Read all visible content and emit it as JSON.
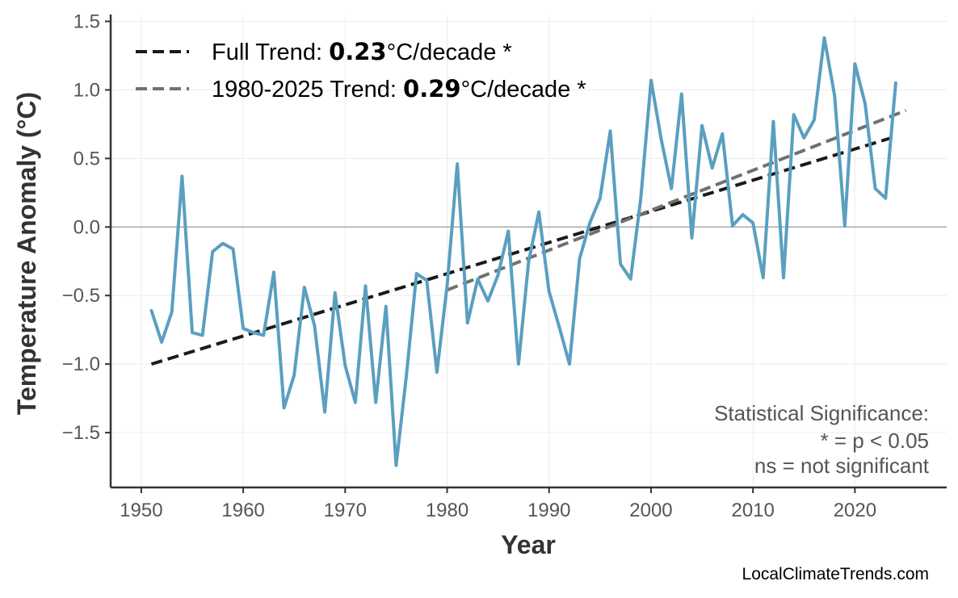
{
  "chart_data": {
    "type": "line",
    "xlabel": "Year",
    "ylabel": "Temperature Anomaly (°C)",
    "xlim": [
      1947,
      2029
    ],
    "ylim": [
      -1.9,
      1.55
    ],
    "xticks": [
      1950,
      1960,
      1970,
      1980,
      1990,
      2000,
      2010,
      2020
    ],
    "xtick_labels": [
      "1950",
      "1960",
      "1970",
      "1980",
      "1990",
      "2000",
      "2010",
      "2020"
    ],
    "yticks": [
      1.5,
      1.0,
      0.5,
      0.0,
      -0.5,
      -1.0,
      -1.5
    ],
    "ytick_labels": [
      "1.5",
      "1.0",
      "0.5",
      "0.0",
      "−0.5",
      "−1.0",
      "−1.5"
    ],
    "grid": true,
    "zero_line": true,
    "legend_position": "top-left",
    "series": [
      {
        "color": "#5a9fc0",
        "x": [
          1951,
          1952,
          1953,
          1954,
          1955,
          1956,
          1957,
          1958,
          1959,
          1960,
          1961,
          1962,
          1963,
          1964,
          1965,
          1966,
          1967,
          1968,
          1969,
          1970,
          1971,
          1972,
          1973,
          1974,
          1975,
          1976,
          1977,
          1978,
          1979,
          1980,
          1981,
          1982,
          1983,
          1984,
          1985,
          1986,
          1987,
          1988,
          1989,
          1990,
          1991,
          1992,
          1993,
          1994,
          1995,
          1996,
          1997,
          1998,
          1999,
          2000,
          2001,
          2002,
          2003,
          2004,
          2005,
          2006,
          2007,
          2008,
          2009,
          2010,
          2011,
          2012,
          2013,
          2014,
          2015,
          2016,
          2017,
          2018,
          2019,
          2020,
          2021,
          2022,
          2023,
          2024
        ],
        "y": [
          -0.61,
          -0.84,
          -0.62,
          0.37,
          -0.77,
          -0.79,
          -0.18,
          -0.12,
          -0.16,
          -0.74,
          -0.77,
          -0.79,
          -0.33,
          -1.32,
          -1.08,
          -0.44,
          -0.72,
          -1.35,
          -0.48,
          -1.01,
          -1.28,
          -0.43,
          -1.28,
          -0.58,
          -1.74,
          -1.09,
          -0.34,
          -0.39,
          -1.06,
          -0.43,
          0.46,
          -0.7,
          -0.38,
          -0.54,
          -0.35,
          -0.03,
          -1.0,
          -0.25,
          0.11,
          -0.47,
          -0.73,
          -1.0,
          -0.23,
          0.03,
          0.21,
          0.7,
          -0.27,
          -0.38,
          0.21,
          1.07,
          0.64,
          0.28,
          0.97,
          -0.08,
          0.74,
          0.43,
          0.68,
          0.01,
          0.09,
          0.03,
          -0.37,
          0.77,
          -0.37,
          0.82,
          0.65,
          0.78,
          1.38,
          0.96,
          0.01,
          1.19,
          0.9,
          0.28,
          0.21,
          1.05
        ]
      }
    ],
    "trend_lines": [
      {
        "name": "Full Trend",
        "x": [
          1951,
          2024
        ],
        "y": [
          -1.0,
          0.66
        ],
        "color": "#1a1a1a",
        "style": "dashed"
      },
      {
        "name": "1980-2025 Trend",
        "x": [
          1980,
          2025
        ],
        "y": [
          -0.46,
          0.85
        ],
        "color": "#707070",
        "style": "dashed"
      }
    ],
    "legend": [
      {
        "prefix": "Full Trend: ",
        "value": "0.23",
        "suffix": "°C/decade *",
        "color": "#1a1a1a"
      },
      {
        "prefix": "1980-2025 Trend: ",
        "value": "0.29",
        "suffix": "°C/decade *",
        "color": "#707070"
      }
    ],
    "annotation": [
      "Statistical Significance:",
      "* = p < 0.05",
      "ns = not significant"
    ],
    "credit": "LocalClimateTrends.com"
  }
}
